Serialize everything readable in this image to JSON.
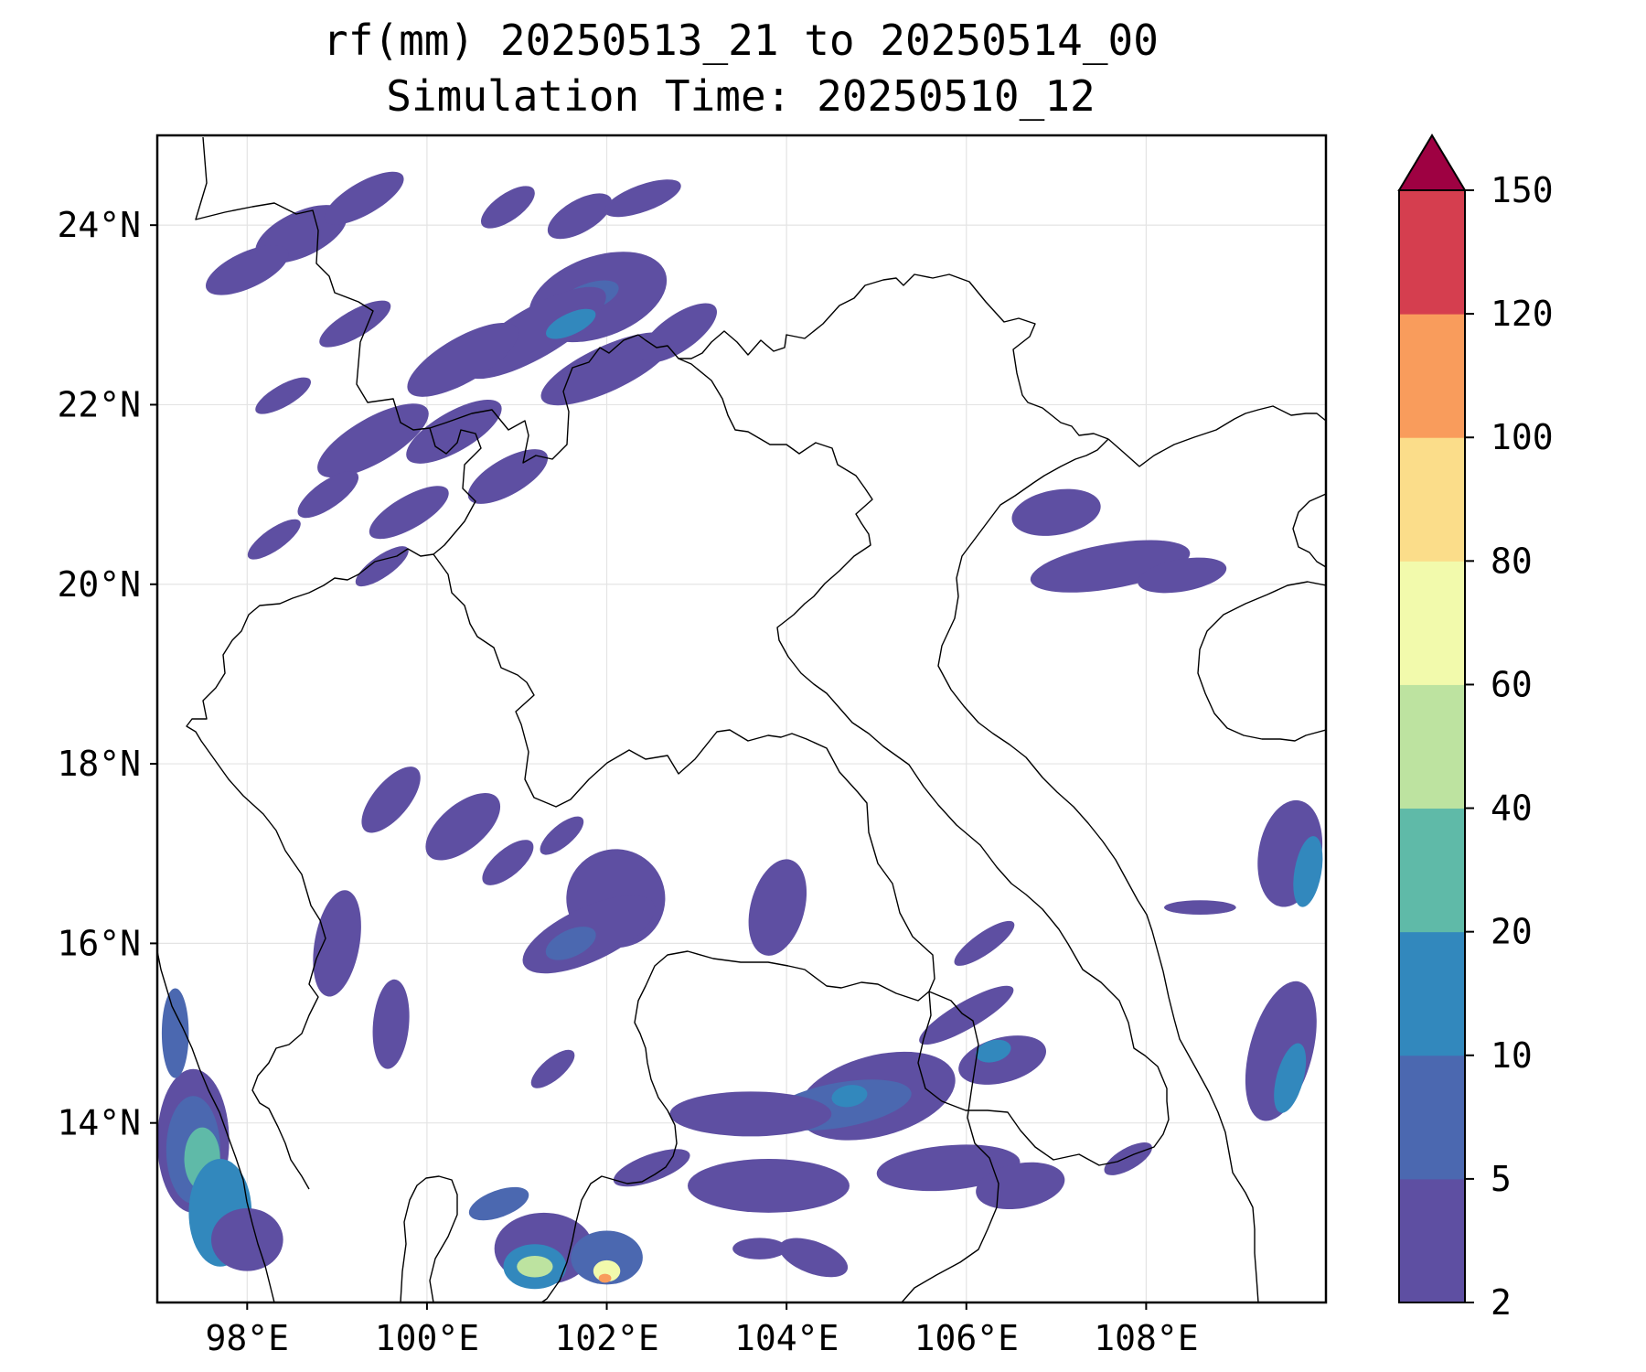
{
  "title": {
    "line1": "rf(mm) 20250513_21 to 20250514_00",
    "line2": "Simulation Time: 20250510_12"
  },
  "map": {
    "lon_range": [
      97.0,
      110.0
    ],
    "lat_range": [
      12.0,
      25.0
    ],
    "lon_ticks": [
      {
        "value": 98,
        "label": "98°E"
      },
      {
        "value": 100,
        "label": "100°E"
      },
      {
        "value": 102,
        "label": "102°E"
      },
      {
        "value": 104,
        "label": "104°E"
      },
      {
        "value": 106,
        "label": "106°E"
      },
      {
        "value": 108,
        "label": "108°E"
      }
    ],
    "lat_ticks": [
      {
        "value": 24,
        "label": "24°N"
      },
      {
        "value": 22,
        "label": "22°N"
      },
      {
        "value": 20,
        "label": "20°N"
      },
      {
        "value": 18,
        "label": "18°N"
      },
      {
        "value": 16,
        "label": "16°N"
      },
      {
        "value": 14,
        "label": "14°N"
      }
    ],
    "gridlines": true,
    "country_borders": true
  },
  "colorbar": {
    "levels": [
      2,
      5,
      10,
      20,
      40,
      60,
      80,
      100,
      120,
      150
    ],
    "labels": [
      "2",
      "5",
      "10",
      "20",
      "40",
      "60",
      "80",
      "100",
      "120",
      "150"
    ],
    "colors": [
      "#5e4fa2",
      "#4b68b0",
      "#3288bd",
      "#5fbaa8",
      "#bde3a0",
      "#f2faac",
      "#fbdd8a",
      "#f99c5c",
      "#d53e4f"
    ],
    "extend_color": "#9e0142",
    "extend": "max"
  },
  "rain_patches": [
    {
      "lon": 98.6,
      "lat": 23.9,
      "rx": 0.55,
      "ry": 0.25,
      "angle": -25,
      "level": 0
    },
    {
      "lon": 99.3,
      "lat": 24.3,
      "rx": 0.5,
      "ry": 0.18,
      "angle": -30,
      "level": 0
    },
    {
      "lon": 100.9,
      "lat": 24.2,
      "rx": 0.35,
      "ry": 0.15,
      "angle": -35,
      "level": 0
    },
    {
      "lon": 101.7,
      "lat": 24.1,
      "rx": 0.4,
      "ry": 0.18,
      "angle": -30,
      "level": 0
    },
    {
      "lon": 102.4,
      "lat": 24.3,
      "rx": 0.45,
      "ry": 0.15,
      "angle": -20,
      "level": 0
    },
    {
      "lon": 101.9,
      "lat": 23.2,
      "rx": 0.8,
      "ry": 0.45,
      "angle": -20,
      "level": 0
    },
    {
      "lon": 101.8,
      "lat": 23.2,
      "rx": 0.35,
      "ry": 0.15,
      "angle": -20,
      "level": 1
    },
    {
      "lon": 101.2,
      "lat": 22.8,
      "rx": 0.9,
      "ry": 0.28,
      "angle": -30,
      "level": 0
    },
    {
      "lon": 100.4,
      "lat": 22.5,
      "rx": 0.7,
      "ry": 0.25,
      "angle": -30,
      "level": 0
    },
    {
      "lon": 102.0,
      "lat": 22.4,
      "rx": 0.8,
      "ry": 0.25,
      "angle": -25,
      "level": 0
    },
    {
      "lon": 101.6,
      "lat": 22.9,
      "rx": 0.3,
      "ry": 0.12,
      "angle": -25,
      "level": 2
    },
    {
      "lon": 102.8,
      "lat": 22.8,
      "rx": 0.5,
      "ry": 0.2,
      "angle": -35,
      "level": 0
    },
    {
      "lon": 99.2,
      "lat": 22.9,
      "rx": 0.45,
      "ry": 0.15,
      "angle": -30,
      "level": 0
    },
    {
      "lon": 98.0,
      "lat": 23.5,
      "rx": 0.5,
      "ry": 0.2,
      "angle": -25,
      "level": 0
    },
    {
      "lon": 98.4,
      "lat": 22.1,
      "rx": 0.35,
      "ry": 0.12,
      "angle": -30,
      "level": 0
    },
    {
      "lon": 99.4,
      "lat": 21.6,
      "rx": 0.7,
      "ry": 0.25,
      "angle": -30,
      "level": 0
    },
    {
      "lon": 100.3,
      "lat": 21.7,
      "rx": 0.6,
      "ry": 0.22,
      "angle": -30,
      "level": 0
    },
    {
      "lon": 100.9,
      "lat": 21.2,
      "rx": 0.5,
      "ry": 0.2,
      "angle": -30,
      "level": 0
    },
    {
      "lon": 98.9,
      "lat": 21.0,
      "rx": 0.4,
      "ry": 0.15,
      "angle": -35,
      "level": 0
    },
    {
      "lon": 99.8,
      "lat": 20.8,
      "rx": 0.5,
      "ry": 0.18,
      "angle": -30,
      "level": 0
    },
    {
      "lon": 98.3,
      "lat": 20.5,
      "rx": 0.35,
      "ry": 0.12,
      "angle": -35,
      "level": 0
    },
    {
      "lon": 99.5,
      "lat": 20.2,
      "rx": 0.35,
      "ry": 0.12,
      "angle": -35,
      "level": 0
    },
    {
      "lon": 107.0,
      "lat": 20.8,
      "rx": 0.5,
      "ry": 0.25,
      "angle": -10,
      "level": 0
    },
    {
      "lon": 107.6,
      "lat": 20.2,
      "rx": 0.9,
      "ry": 0.25,
      "angle": -10,
      "level": 0
    },
    {
      "lon": 108.4,
      "lat": 20.1,
      "rx": 0.5,
      "ry": 0.18,
      "angle": -10,
      "level": 0
    },
    {
      "lon": 102.1,
      "lat": 16.5,
      "rx": 0.55,
      "ry": 0.55,
      "angle": -20,
      "level": 0
    },
    {
      "lon": 101.8,
      "lat": 16.1,
      "rx": 0.8,
      "ry": 0.3,
      "angle": -25,
      "level": 0
    },
    {
      "lon": 101.6,
      "lat": 16.0,
      "rx": 0.3,
      "ry": 0.15,
      "angle": -25,
      "level": 1
    },
    {
      "lon": 99.0,
      "lat": 16.0,
      "rx": 0.25,
      "ry": 0.6,
      "angle": 10,
      "level": 0
    },
    {
      "lon": 99.6,
      "lat": 15.1,
      "rx": 0.2,
      "ry": 0.5,
      "angle": 5,
      "level": 0
    },
    {
      "lon": 100.4,
      "lat": 17.3,
      "rx": 0.5,
      "ry": 0.25,
      "angle": -40,
      "level": 0
    },
    {
      "lon": 99.6,
      "lat": 17.6,
      "rx": 0.45,
      "ry": 0.2,
      "angle": -50,
      "level": 0
    },
    {
      "lon": 100.9,
      "lat": 16.9,
      "rx": 0.35,
      "ry": 0.15,
      "angle": -40,
      "level": 0
    },
    {
      "lon": 101.5,
      "lat": 17.2,
      "rx": 0.3,
      "ry": 0.12,
      "angle": -40,
      "level": 0
    },
    {
      "lon": 103.9,
      "lat": 16.4,
      "rx": 0.3,
      "ry": 0.55,
      "angle": 15,
      "level": 0
    },
    {
      "lon": 105.0,
      "lat": 14.3,
      "rx": 0.9,
      "ry": 0.45,
      "angle": -15,
      "level": 0
    },
    {
      "lon": 104.6,
      "lat": 14.2,
      "rx": 0.8,
      "ry": 0.25,
      "angle": -10,
      "level": 1
    },
    {
      "lon": 104.7,
      "lat": 14.3,
      "rx": 0.2,
      "ry": 0.12,
      "angle": -10,
      "level": 2
    },
    {
      "lon": 103.6,
      "lat": 14.1,
      "rx": 0.9,
      "ry": 0.25,
      "angle": 0,
      "level": 0
    },
    {
      "lon": 103.8,
      "lat": 13.3,
      "rx": 0.9,
      "ry": 0.3,
      "angle": 0,
      "level": 0
    },
    {
      "lon": 105.8,
      "lat": 13.5,
      "rx": 0.8,
      "ry": 0.25,
      "angle": -5,
      "level": 0
    },
    {
      "lon": 106.6,
      "lat": 13.3,
      "rx": 0.5,
      "ry": 0.25,
      "angle": -10,
      "level": 0
    },
    {
      "lon": 106.4,
      "lat": 14.7,
      "rx": 0.5,
      "ry": 0.25,
      "angle": -15,
      "level": 0
    },
    {
      "lon": 106.3,
      "lat": 14.8,
      "rx": 0.2,
      "ry": 0.12,
      "angle": -15,
      "level": 2
    },
    {
      "lon": 106.0,
      "lat": 15.2,
      "rx": 0.6,
      "ry": 0.15,
      "angle": -30,
      "level": 0
    },
    {
      "lon": 106.2,
      "lat": 16.0,
      "rx": 0.4,
      "ry": 0.12,
      "angle": -35,
      "level": 0
    },
    {
      "lon": 103.7,
      "lat": 12.6,
      "rx": 0.3,
      "ry": 0.12,
      "angle": 0,
      "level": 0
    },
    {
      "lon": 104.3,
      "lat": 12.5,
      "rx": 0.4,
      "ry": 0.18,
      "angle": 20,
      "level": 0
    },
    {
      "lon": 102.5,
      "lat": 13.5,
      "rx": 0.45,
      "ry": 0.15,
      "angle": -20,
      "level": 0
    },
    {
      "lon": 101.3,
      "lat": 12.6,
      "rx": 0.55,
      "ry": 0.4,
      "angle": 0,
      "level": 0
    },
    {
      "lon": 101.2,
      "lat": 12.4,
      "rx": 0.35,
      "ry": 0.25,
      "angle": 0,
      "level": 2
    },
    {
      "lon": 101.2,
      "lat": 12.4,
      "rx": 0.2,
      "ry": 0.12,
      "angle": 0,
      "level": 4
    },
    {
      "lon": 102.0,
      "lat": 12.5,
      "rx": 0.4,
      "ry": 0.3,
      "angle": 0,
      "level": 1
    },
    {
      "lon": 102.0,
      "lat": 12.35,
      "rx": 0.15,
      "ry": 0.12,
      "angle": 0,
      "level": 5
    },
    {
      "lon": 101.98,
      "lat": 12.27,
      "rx": 0.07,
      "ry": 0.05,
      "angle": 0,
      "level": 7
    },
    {
      "lon": 100.8,
      "lat": 13.1,
      "rx": 0.35,
      "ry": 0.15,
      "angle": -20,
      "level": 1
    },
    {
      "lon": 97.4,
      "lat": 13.8,
      "rx": 0.4,
      "ry": 0.8,
      "angle": 0,
      "level": 0
    },
    {
      "lon": 97.4,
      "lat": 13.7,
      "rx": 0.3,
      "ry": 0.6,
      "angle": 0,
      "level": 1
    },
    {
      "lon": 97.5,
      "lat": 13.6,
      "rx": 0.2,
      "ry": 0.35,
      "angle": 0,
      "level": 3
    },
    {
      "lon": 97.7,
      "lat": 13.0,
      "rx": 0.35,
      "ry": 0.6,
      "angle": 0,
      "level": 2
    },
    {
      "lon": 98.0,
      "lat": 12.7,
      "rx": 0.4,
      "ry": 0.35,
      "angle": 0,
      "level": 0
    },
    {
      "lon": 97.2,
      "lat": 15.0,
      "rx": 0.15,
      "ry": 0.5,
      "angle": 0,
      "level": 1
    },
    {
      "lon": 109.6,
      "lat": 17.0,
      "rx": 0.35,
      "ry": 0.6,
      "angle": 10,
      "level": 0
    },
    {
      "lon": 109.8,
      "lat": 16.8,
      "rx": 0.15,
      "ry": 0.4,
      "angle": 10,
      "level": 2
    },
    {
      "lon": 109.5,
      "lat": 14.8,
      "rx": 0.35,
      "ry": 0.8,
      "angle": 15,
      "level": 0
    },
    {
      "lon": 109.6,
      "lat": 14.5,
      "rx": 0.15,
      "ry": 0.4,
      "angle": 15,
      "level": 2
    },
    {
      "lon": 108.6,
      "lat": 16.4,
      "rx": 0.4,
      "ry": 0.08,
      "angle": 0,
      "level": 0
    },
    {
      "lon": 107.8,
      "lat": 13.6,
      "rx": 0.3,
      "ry": 0.12,
      "angle": -30,
      "level": 0
    },
    {
      "lon": 101.4,
      "lat": 14.6,
      "rx": 0.3,
      "ry": 0.12,
      "angle": -40,
      "level": 0
    }
  ]
}
